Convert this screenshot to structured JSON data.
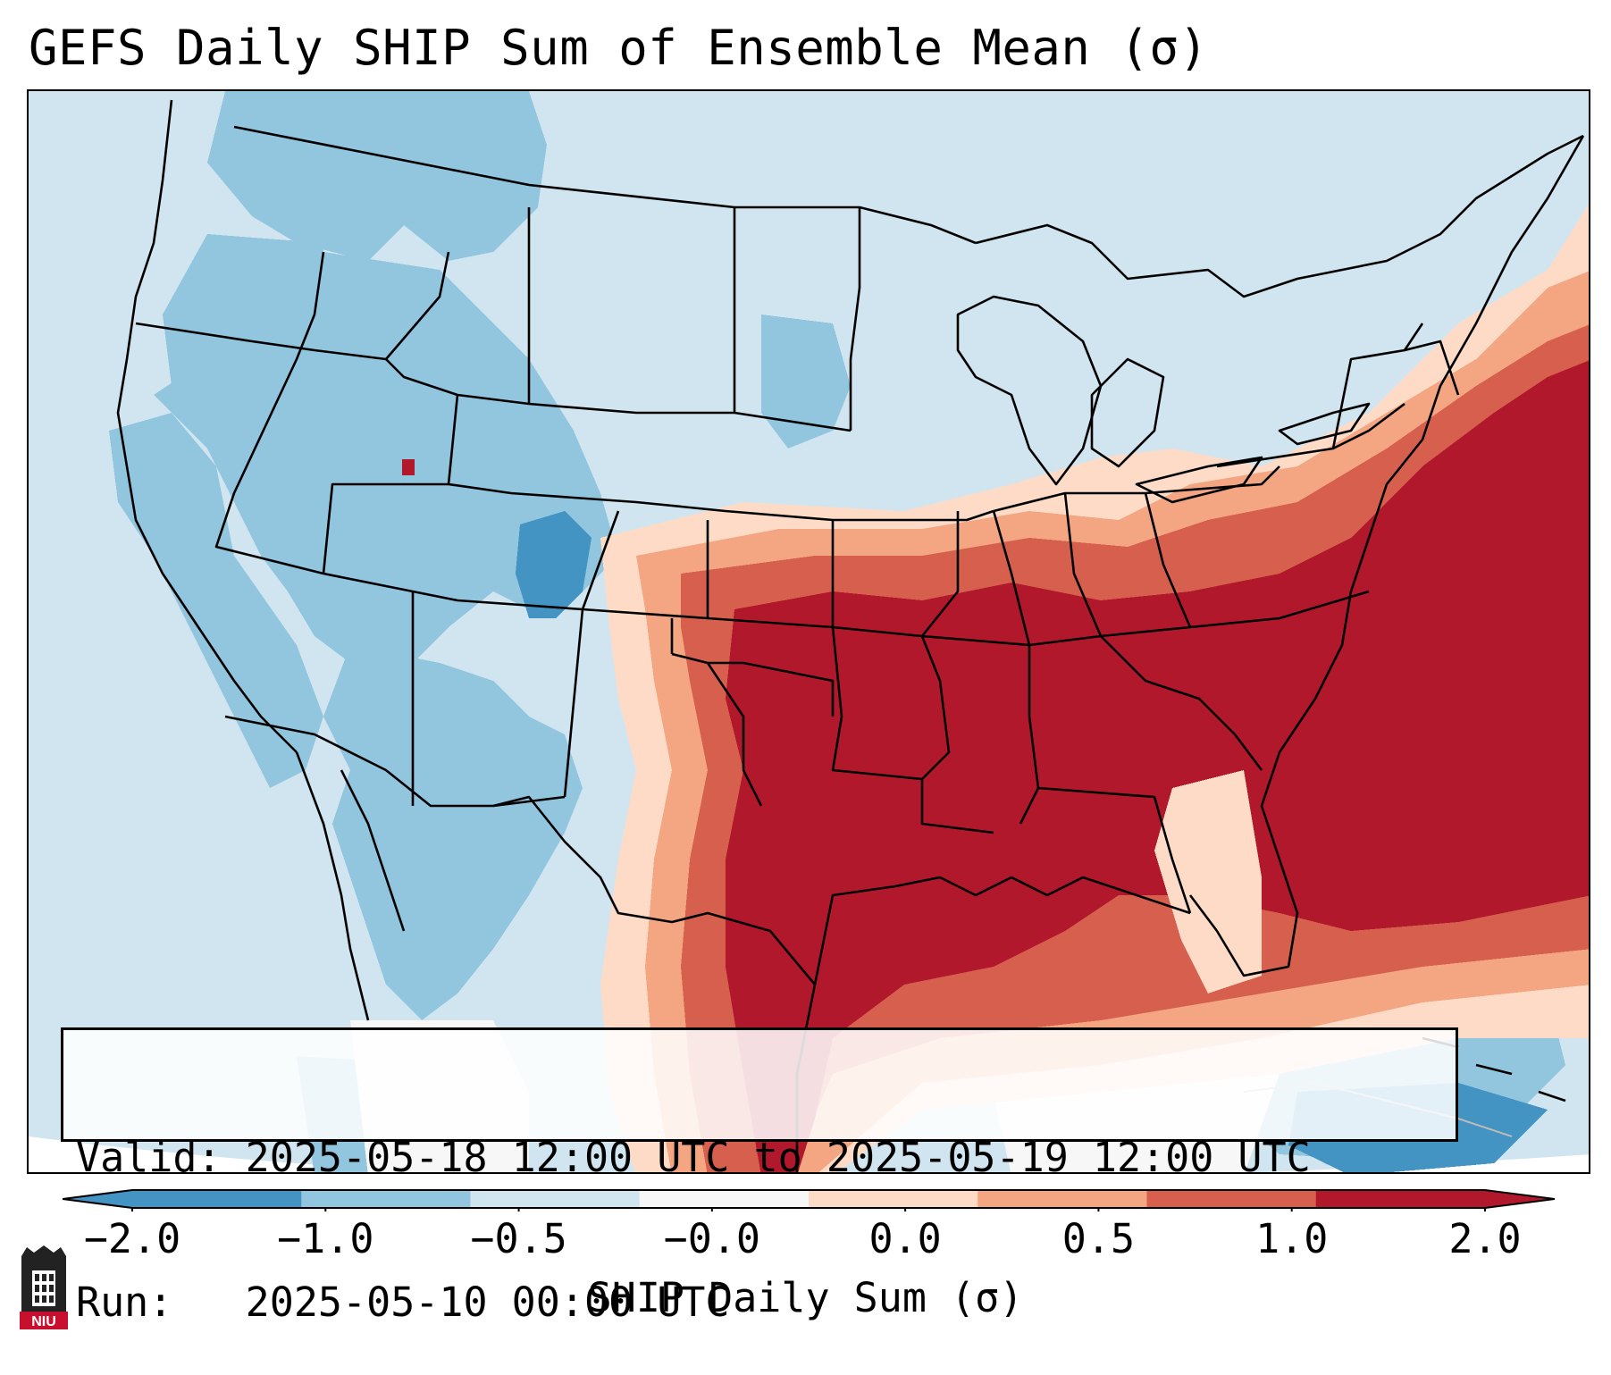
{
  "title": "GEFS Daily SHIP Sum of Ensemble Mean (σ)",
  "info": {
    "valid_line": "Valid: 2025-05-18 12:00 UTC to 2025-05-19 12:00 UTC",
    "run_line": "Run:   2025-05-10 00:00 UTC"
  },
  "colorbar": {
    "label": "SHIP Daily Sum (σ)",
    "ticks": [
      "−2.0",
      "−1.0",
      "−0.5",
      "−0.0",
      "0.0",
      "0.5",
      "1.0",
      "2.0"
    ],
    "colors": [
      "#4393c3",
      "#92c5de",
      "#d1e5f0",
      "#f7f7f7",
      "#fddbc7",
      "#f4a582",
      "#d6604d",
      "#b2182b"
    ],
    "extend": "both"
  },
  "logo": {
    "text": "NIU",
    "name": "Northern Illinois University"
  },
  "map": {
    "projection": "Lambert conformal, CONUS",
    "field": "SHIP daily sum of ensemble mean",
    "pattern": "Positive anomalies over the central and southeastern US, Gulf of Mexico and western Atlantic; negative anomalies over the western US and Rockies"
  }
}
